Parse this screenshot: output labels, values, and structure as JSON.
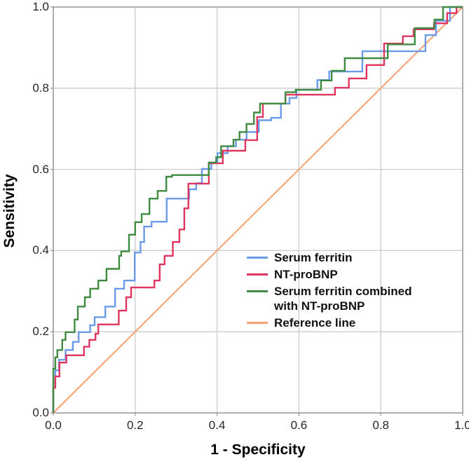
{
  "chart_data": {
    "type": "line",
    "subtype": "roc-step-curves",
    "title": "",
    "xlabel": "1 - Specificity",
    "ylabel": "Sensitivity",
    "xlim": [
      0.0,
      1.0
    ],
    "ylim": [
      0.0,
      1.0
    ],
    "xticks": [
      0.0,
      0.2,
      0.4,
      0.6,
      0.8,
      1.0
    ],
    "yticks": [
      0.0,
      0.2,
      0.4,
      0.6,
      0.8,
      1.0
    ],
    "grid": true,
    "gridline_color": "#cbcbcb",
    "border_color": "#9a9a9a",
    "tick_text_color": "#262626",
    "legend_position": "inside-center-right",
    "series": [
      {
        "name": "Serum ferritin",
        "color": "#6A9BE8",
        "line_width": 2.4,
        "step": true,
        "points": [
          [
            0,
            0
          ],
          [
            0,
            0.075
          ],
          [
            0.005,
            0.075
          ],
          [
            0.005,
            0.105
          ],
          [
            0.014,
            0.105
          ],
          [
            0.014,
            0.131
          ],
          [
            0.03,
            0.131
          ],
          [
            0.03,
            0.155
          ],
          [
            0.048,
            0.155
          ],
          [
            0.048,
            0.175
          ],
          [
            0.062,
            0.175
          ],
          [
            0.062,
            0.199
          ],
          [
            0.09,
            0.199
          ],
          [
            0.09,
            0.216
          ],
          [
            0.101,
            0.216
          ],
          [
            0.101,
            0.236
          ],
          [
            0.127,
            0.236
          ],
          [
            0.127,
            0.262
          ],
          [
            0.151,
            0.262
          ],
          [
            0.151,
            0.306
          ],
          [
            0.173,
            0.306
          ],
          [
            0.173,
            0.326
          ],
          [
            0.199,
            0.326
          ],
          [
            0.199,
            0.395
          ],
          [
            0.213,
            0.395
          ],
          [
            0.213,
            0.421
          ],
          [
            0.222,
            0.421
          ],
          [
            0.222,
            0.459
          ],
          [
            0.24,
            0.459
          ],
          [
            0.24,
            0.471
          ],
          [
            0.277,
            0.471
          ],
          [
            0.277,
            0.528
          ],
          [
            0.332,
            0.528
          ],
          [
            0.332,
            0.551
          ],
          [
            0.349,
            0.551
          ],
          [
            0.349,
            0.566
          ],
          [
            0.363,
            0.566
          ],
          [
            0.363,
            0.601
          ],
          [
            0.386,
            0.601
          ],
          [
            0.386,
            0.617
          ],
          [
            0.401,
            0.617
          ],
          [
            0.401,
            0.64
          ],
          [
            0.426,
            0.64
          ],
          [
            0.426,
            0.657
          ],
          [
            0.446,
            0.657
          ],
          [
            0.446,
            0.673
          ],
          [
            0.472,
            0.673
          ],
          [
            0.472,
            0.692
          ],
          [
            0.502,
            0.692
          ],
          [
            0.502,
            0.721
          ],
          [
            0.532,
            0.721
          ],
          [
            0.532,
            0.727
          ],
          [
            0.556,
            0.727
          ],
          [
            0.556,
            0.762
          ],
          [
            0.577,
            0.762
          ],
          [
            0.577,
            0.776
          ],
          [
            0.594,
            0.776
          ],
          [
            0.594,
            0.796
          ],
          [
            0.645,
            0.796
          ],
          [
            0.645,
            0.82
          ],
          [
            0.674,
            0.82
          ],
          [
            0.674,
            0.841
          ],
          [
            0.755,
            0.841
          ],
          [
            0.755,
            0.891
          ],
          [
            0.909,
            0.891
          ],
          [
            0.909,
            0.931
          ],
          [
            0.935,
            0.931
          ],
          [
            0.935,
            0.966
          ],
          [
            0.969,
            0.966
          ],
          [
            0.969,
            1
          ],
          [
            1,
            1
          ]
        ]
      },
      {
        "name": "NT-proBNP",
        "color": "#E0355F",
        "line_width": 2.4,
        "step": true,
        "points": [
          [
            0,
            0
          ],
          [
            0,
            0.062
          ],
          [
            0.005,
            0.062
          ],
          [
            0.005,
            0.09
          ],
          [
            0.015,
            0.09
          ],
          [
            0.015,
            0.124
          ],
          [
            0.032,
            0.124
          ],
          [
            0.032,
            0.142
          ],
          [
            0.075,
            0.142
          ],
          [
            0.075,
            0.163
          ],
          [
            0.088,
            0.163
          ],
          [
            0.088,
            0.18
          ],
          [
            0.103,
            0.18
          ],
          [
            0.103,
            0.195
          ],
          [
            0.11,
            0.195
          ],
          [
            0.11,
            0.218
          ],
          [
            0.16,
            0.218
          ],
          [
            0.16,
            0.252
          ],
          [
            0.178,
            0.252
          ],
          [
            0.178,
            0.285
          ],
          [
            0.19,
            0.285
          ],
          [
            0.19,
            0.309
          ],
          [
            0.247,
            0.309
          ],
          [
            0.247,
            0.326
          ],
          [
            0.26,
            0.326
          ],
          [
            0.26,
            0.366
          ],
          [
            0.272,
            0.366
          ],
          [
            0.272,
            0.387
          ],
          [
            0.292,
            0.387
          ],
          [
            0.292,
            0.421
          ],
          [
            0.308,
            0.421
          ],
          [
            0.308,
            0.452
          ],
          [
            0.32,
            0.452
          ],
          [
            0.32,
            0.504
          ],
          [
            0.33,
            0.504
          ],
          [
            0.33,
            0.565
          ],
          [
            0.38,
            0.565
          ],
          [
            0.38,
            0.615
          ],
          [
            0.414,
            0.615
          ],
          [
            0.414,
            0.646
          ],
          [
            0.469,
            0.646
          ],
          [
            0.469,
            0.672
          ],
          [
            0.498,
            0.672
          ],
          [
            0.498,
            0.729
          ],
          [
            0.512,
            0.729
          ],
          [
            0.512,
            0.762
          ],
          [
            0.567,
            0.762
          ],
          [
            0.567,
            0.784
          ],
          [
            0.688,
            0.784
          ],
          [
            0.688,
            0.801
          ],
          [
            0.722,
            0.801
          ],
          [
            0.722,
            0.824
          ],
          [
            0.765,
            0.824
          ],
          [
            0.765,
            0.857
          ],
          [
            0.808,
            0.857
          ],
          [
            0.808,
            0.91
          ],
          [
            0.854,
            0.91
          ],
          [
            0.854,
            0.928
          ],
          [
            0.88,
            0.928
          ],
          [
            0.88,
            0.945
          ],
          [
            0.93,
            0.945
          ],
          [
            0.93,
            0.96
          ],
          [
            0.962,
            0.96
          ],
          [
            0.962,
            0.985
          ],
          [
            0.985,
            0.985
          ],
          [
            0.985,
            1
          ],
          [
            1,
            1
          ]
        ]
      },
      {
        "name": "Serum ferritin combined with NT-proBNP",
        "color": "#3E8B41",
        "line_width": 2.4,
        "step": true,
        "points": [
          [
            0,
            0
          ],
          [
            0,
            0.109
          ],
          [
            0.005,
            0.109
          ],
          [
            0.005,
            0.137
          ],
          [
            0.01,
            0.137
          ],
          [
            0.01,
            0.155
          ],
          [
            0.022,
            0.155
          ],
          [
            0.022,
            0.18
          ],
          [
            0.03,
            0.18
          ],
          [
            0.03,
            0.199
          ],
          [
            0.052,
            0.199
          ],
          [
            0.052,
            0.23
          ],
          [
            0.06,
            0.23
          ],
          [
            0.06,
            0.262
          ],
          [
            0.077,
            0.262
          ],
          [
            0.077,
            0.285
          ],
          [
            0.09,
            0.285
          ],
          [
            0.09,
            0.306
          ],
          [
            0.11,
            0.306
          ],
          [
            0.11,
            0.326
          ],
          [
            0.13,
            0.326
          ],
          [
            0.13,
            0.355
          ],
          [
            0.161,
            0.355
          ],
          [
            0.161,
            0.387
          ],
          [
            0.166,
            0.387
          ],
          [
            0.166,
            0.398
          ],
          [
            0.185,
            0.398
          ],
          [
            0.185,
            0.439
          ],
          [
            0.2,
            0.439
          ],
          [
            0.2,
            0.47
          ],
          [
            0.216,
            0.47
          ],
          [
            0.216,
            0.49
          ],
          [
            0.235,
            0.49
          ],
          [
            0.235,
            0.528
          ],
          [
            0.255,
            0.528
          ],
          [
            0.255,
            0.547
          ],
          [
            0.276,
            0.547
          ],
          [
            0.276,
            0.582
          ],
          [
            0.29,
            0.582
          ],
          [
            0.29,
            0.586
          ],
          [
            0.38,
            0.586
          ],
          [
            0.38,
            0.617
          ],
          [
            0.398,
            0.617
          ],
          [
            0.398,
            0.63
          ],
          [
            0.41,
            0.63
          ],
          [
            0.41,
            0.657
          ],
          [
            0.44,
            0.657
          ],
          [
            0.44,
            0.673
          ],
          [
            0.455,
            0.673
          ],
          [
            0.455,
            0.692
          ],
          [
            0.472,
            0.692
          ],
          [
            0.472,
            0.712
          ],
          [
            0.49,
            0.712
          ],
          [
            0.49,
            0.74
          ],
          [
            0.505,
            0.74
          ],
          [
            0.505,
            0.762
          ],
          [
            0.567,
            0.762
          ],
          [
            0.567,
            0.79
          ],
          [
            0.592,
            0.79
          ],
          [
            0.592,
            0.796
          ],
          [
            0.654,
            0.796
          ],
          [
            0.654,
            0.819
          ],
          [
            0.68,
            0.819
          ],
          [
            0.68,
            0.843
          ],
          [
            0.712,
            0.843
          ],
          [
            0.712,
            0.874
          ],
          [
            0.817,
            0.874
          ],
          [
            0.817,
            0.908
          ],
          [
            0.883,
            0.908
          ],
          [
            0.883,
            0.948
          ],
          [
            0.931,
            0.948
          ],
          [
            0.931,
            0.969
          ],
          [
            0.952,
            0.969
          ],
          [
            0.952,
            1
          ],
          [
            1,
            1
          ]
        ]
      },
      {
        "name": "Reference line",
        "color": "#F9A172",
        "line_width": 2,
        "step": false,
        "points": [
          [
            0,
            0
          ],
          [
            1,
            1
          ]
        ]
      }
    ],
    "legend": {
      "items": [
        {
          "label_lines": [
            "Serum ferritin"
          ],
          "color": "#6A9BE8"
        },
        {
          "label_lines": [
            "NT-proBNP"
          ],
          "color": "#E0355F"
        },
        {
          "label_lines": [
            "Serum ferritin combined",
            "with NT-proBNP"
          ],
          "color": "#3E8B41"
        },
        {
          "label_lines": [
            "Reference line"
          ],
          "color": "#F9A172"
        }
      ]
    }
  }
}
